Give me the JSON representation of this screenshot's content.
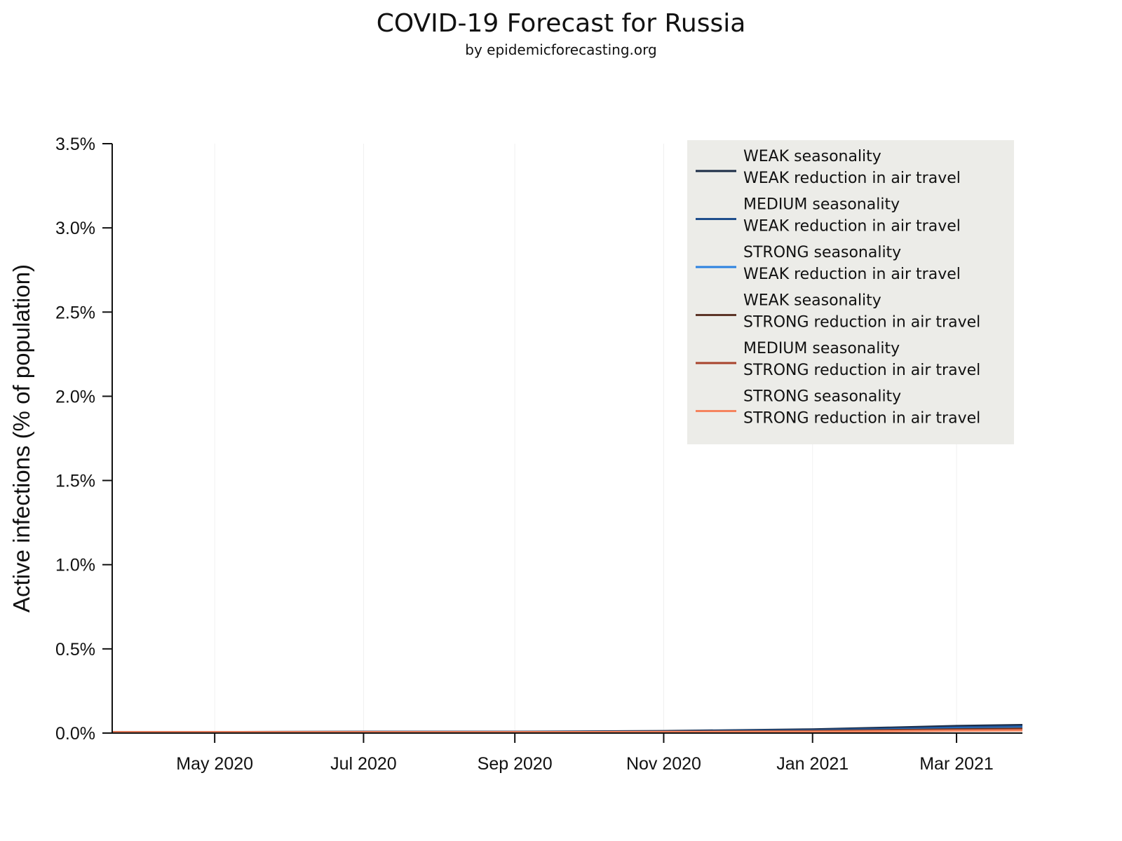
{
  "title": "COVID-19 Forecast for Russia",
  "subtitle": "by epidemicforecasting.org",
  "chart_data": {
    "type": "line",
    "title": "COVID-19 Forecast for Russia",
    "subtitle": "by epidemicforecasting.org",
    "xlabel": "",
    "ylabel": "Active infections (% of population)",
    "xlim": [
      "2020-03-20",
      "2021-03-28"
    ],
    "ylim": [
      0,
      3.5
    ],
    "grid": "vertical",
    "legend_position": "top-right",
    "x_ticks": [
      {
        "date": "2020-05-01",
        "label": "May 2020"
      },
      {
        "date": "2020-07-01",
        "label": "Jul 2020"
      },
      {
        "date": "2020-09-01",
        "label": "Sep 2020"
      },
      {
        "date": "2020-11-01",
        "label": "Nov 2020"
      },
      {
        "date": "2021-01-01",
        "label": "Jan 2021"
      },
      {
        "date": "2021-03-01",
        "label": "Mar 2021"
      }
    ],
    "y_ticks": [
      {
        "value": 0.0,
        "label": "0.0%"
      },
      {
        "value": 0.5,
        "label": "0.5%"
      },
      {
        "value": 1.0,
        "label": "1.0%"
      },
      {
        "value": 1.5,
        "label": "1.5%"
      },
      {
        "value": 2.0,
        "label": "2.0%"
      },
      {
        "value": 2.5,
        "label": "2.5%"
      },
      {
        "value": 3.0,
        "label": "3.0%"
      },
      {
        "value": 3.5,
        "label": "3.5%"
      }
    ],
    "x": [
      "2020-03-20",
      "2020-05-01",
      "2020-07-01",
      "2020-09-01",
      "2020-11-01",
      "2021-01-01",
      "2021-02-01",
      "2021-03-01",
      "2021-03-28"
    ],
    "series": [
      {
        "name_line1": "WEAK seasonality",
        "name_line2": "WEAK reduction in air travel",
        "color": "#1a2b45",
        "values": [
          0.005,
          0.006,
          0.008,
          0.008,
          0.012,
          0.022,
          0.032,
          0.042,
          0.048
        ]
      },
      {
        "name_line1": "MEDIUM seasonality",
        "name_line2": "WEAK reduction in air travel",
        "color": "#1f4e8c",
        "values": [
          0.005,
          0.006,
          0.007,
          0.007,
          0.01,
          0.018,
          0.026,
          0.034,
          0.04
        ]
      },
      {
        "name_line1": "STRONG seasonality",
        "name_line2": "WEAK reduction in air travel",
        "color": "#2b82e0",
        "values": [
          0.005,
          0.005,
          0.006,
          0.006,
          0.008,
          0.014,
          0.02,
          0.027,
          0.032
        ]
      },
      {
        "name_line1": "WEAK seasonality",
        "name_line2": "STRONG reduction in air travel",
        "color": "#5c3527",
        "values": [
          0.005,
          0.005,
          0.006,
          0.006,
          0.008,
          0.013,
          0.018,
          0.023,
          0.027
        ]
      },
      {
        "name_line1": "MEDIUM seasonality",
        "name_line2": "STRONG reduction in air travel",
        "color": "#a8432c",
        "values": [
          0.005,
          0.005,
          0.005,
          0.005,
          0.007,
          0.01,
          0.014,
          0.018,
          0.021
        ]
      },
      {
        "name_line1": "STRONG seasonality",
        "name_line2": "STRONG reduction in air travel",
        "color": "#f5845e",
        "values": [
          0.005,
          0.005,
          0.005,
          0.005,
          0.006,
          0.008,
          0.011,
          0.014,
          0.016
        ]
      }
    ]
  },
  "colors": {
    "legend_background": "#ecece8",
    "axis": "#111111",
    "grid": "#f0f0f0"
  }
}
